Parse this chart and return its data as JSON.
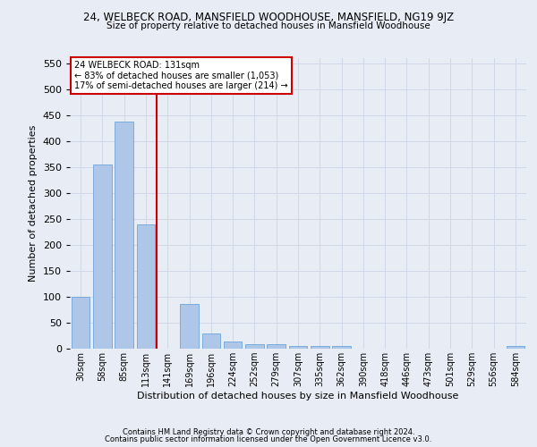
{
  "title": "24, WELBECK ROAD, MANSFIELD WOODHOUSE, MANSFIELD, NG19 9JZ",
  "subtitle": "Size of property relative to detached houses in Mansfield Woodhouse",
  "xlabel": "Distribution of detached houses by size in Mansfield Woodhouse",
  "ylabel": "Number of detached properties",
  "footnote1": "Contains HM Land Registry data © Crown copyright and database right 2024.",
  "footnote2": "Contains public sector information licensed under the Open Government Licence v3.0.",
  "annotation_line1": "24 WELBECK ROAD: 131sqm",
  "annotation_line2": "← 83% of detached houses are smaller (1,053)",
  "annotation_line3": "17% of semi-detached houses are larger (214) →",
  "categories": [
    "30sqm",
    "58sqm",
    "85sqm",
    "113sqm",
    "141sqm",
    "169sqm",
    "196sqm",
    "224sqm",
    "252sqm",
    "279sqm",
    "307sqm",
    "335sqm",
    "362sqm",
    "390sqm",
    "418sqm",
    "446sqm",
    "473sqm",
    "501sqm",
    "529sqm",
    "556sqm",
    "584sqm"
  ],
  "values": [
    100,
    355,
    437,
    240,
    0,
    87,
    30,
    14,
    9,
    8,
    5,
    5,
    5,
    0,
    0,
    0,
    0,
    0,
    0,
    0,
    5
  ],
  "bar_color": "#aec6e8",
  "bar_edge_color": "#5b9bd5",
  "red_line_color": "#cc0000",
  "annotation_box_color": "#cc0000",
  "grid_color": "#d0d8e8",
  "bg_color": "#e8edf5",
  "ylim": [
    0,
    560
  ],
  "yticks": [
    0,
    50,
    100,
    150,
    200,
    250,
    300,
    350,
    400,
    450,
    500,
    550
  ],
  "red_line_index": 3.5
}
